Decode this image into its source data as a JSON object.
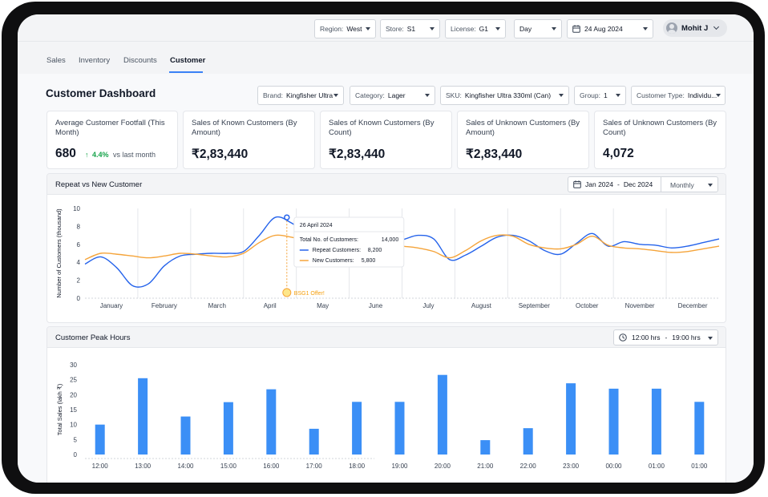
{
  "topbar": {
    "filters": [
      {
        "label": "Region:",
        "value": "West"
      },
      {
        "label": "Store:",
        "value": "S1"
      },
      {
        "label": "License:",
        "value": "G1"
      },
      {
        "label": "",
        "value": "Day"
      },
      {
        "label": "",
        "value": "24 Aug 2024"
      }
    ],
    "user": "Mohit J"
  },
  "nav": {
    "tabs": [
      "Sales",
      "Inventory",
      "Discounts",
      "Customer"
    ],
    "active": "Customer"
  },
  "page_title": "Customer Dashboard",
  "filters": [
    {
      "label": "Brand:",
      "value": "Kingfisher Ultra"
    },
    {
      "label": "Category:",
      "value": "Lager"
    },
    {
      "label": "SKU:",
      "value": "Kingfisher Ultra 330ml (Can)"
    },
    {
      "label": "Group:",
      "value": "1"
    },
    {
      "label": "Customer Type:",
      "value": "Individu..."
    }
  ],
  "kpis": [
    {
      "label": "Average Customer Footfall (This Month)",
      "value": "680",
      "delta": "4.4%",
      "delta_suffix": "vs last month"
    },
    {
      "label": "Sales of Known Customers (By Amount)",
      "value": "₹2,83,440"
    },
    {
      "label": "Sales of Known Customers (By Count)",
      "value": "₹2,83,440"
    },
    {
      "label": "Sales of Unknown Customers (By Amount)",
      "value": "₹2,83,440"
    },
    {
      "label": "Sales of Unknown Customers (By Count)",
      "value": "4,072"
    }
  ],
  "colors": {
    "blue": "#2563eb",
    "orange": "#f5a43a",
    "bar": "#3b8ff6",
    "green": "#16a34a"
  },
  "repeat_panel": {
    "title": "Repeat vs New Customer",
    "date_from": "Jan 2024",
    "date_sep": "-",
    "date_to": "Dec 2024",
    "granularity": "Monthly",
    "tooltip": {
      "date": "26 April 2024",
      "total_label": "Total No. of Customers:",
      "total_value": "14,000",
      "repeat_label": "Repeat Customers:",
      "repeat_value": "8,200",
      "new_label": "New Customers:",
      "new_value": "5,800"
    },
    "annotation": "BSG1 Offer!"
  },
  "peak_panel": {
    "title": "Customer Peak Hours",
    "time_from": "12:00 hrs",
    "time_sep": "-",
    "time_to": "19:00 hrs"
  },
  "chart_data": [
    {
      "type": "line",
      "ylabel": "Number of Customers (thousand)",
      "ylim": [
        0,
        10
      ],
      "yticks": [
        "0",
        "2",
        "4",
        "6",
        "8",
        "10"
      ],
      "categories": [
        "January",
        "February",
        "March",
        "April",
        "May",
        "June",
        "July",
        "August",
        "September",
        "October",
        "November",
        "December"
      ],
      "x": [
        0,
        0.3,
        0.6,
        0.9,
        1.2,
        1.5,
        1.8,
        2.1,
        2.4,
        2.7,
        3.0,
        3.3,
        3.6,
        3.9,
        4.2,
        4.5,
        4.8,
        5.1,
        5.4,
        5.7,
        6.0,
        6.3,
        6.6,
        6.9,
        7.2,
        7.5,
        7.8,
        8.1,
        8.4,
        8.7,
        9.0,
        9.3,
        9.6,
        9.9,
        10.2,
        10.5,
        10.8,
        11.1,
        11.4,
        11.7,
        12.0
      ],
      "series": [
        {
          "name": "Repeat Customers",
          "color": "#2563eb",
          "values": [
            3.8,
            4.6,
            3.4,
            1.4,
            1.6,
            3.6,
            4.7,
            4.9,
            5.0,
            5.0,
            5.2,
            7.0,
            9.0,
            8.4,
            7.0,
            4.2,
            3.5,
            4.2,
            5.6,
            6.3,
            6.5,
            7.0,
            6.6,
            4.3,
            4.8,
            5.8,
            6.8,
            7.0,
            6.4,
            5.3,
            4.9,
            6.1,
            7.2,
            5.8,
            6.3,
            6.0,
            5.9,
            5.6,
            5.8,
            6.2,
            6.6
          ]
        },
        {
          "name": "New Customers",
          "color": "#f5a43a",
          "values": [
            4.3,
            5.0,
            4.9,
            4.7,
            4.5,
            4.7,
            5.0,
            4.9,
            4.7,
            4.6,
            5.0,
            6.2,
            7.0,
            6.8,
            6.4,
            6.0,
            6.3,
            6.4,
            6.2,
            6.0,
            5.8,
            5.6,
            5.2,
            4.5,
            5.3,
            6.4,
            7.0,
            6.9,
            6.0,
            5.6,
            5.5,
            6.0,
            6.9,
            5.9,
            5.6,
            5.5,
            5.3,
            5.1,
            5.2,
            5.5,
            5.8
          ]
        }
      ]
    },
    {
      "type": "bar",
      "ylabel": "Total Sales (lakh ₹)",
      "ylim": [
        0,
        30
      ],
      "yticks": [
        "0",
        "5",
        "10",
        "15",
        "20",
        "25",
        "30"
      ],
      "categories": [
        "12:00",
        "13:00",
        "14:00",
        "15:00",
        "16:00",
        "17:00",
        "18:00",
        "19:00",
        "20:00",
        "21:00",
        "22:00",
        "23:00",
        "00:00",
        "01:00",
        "01:00"
      ],
      "values": [
        10,
        25.5,
        12.7,
        17.5,
        21.8,
        8.6,
        17.6,
        17.6,
        26.6,
        4.8,
        8.8,
        23.8,
        22,
        22,
        17.6
      ]
    }
  ]
}
